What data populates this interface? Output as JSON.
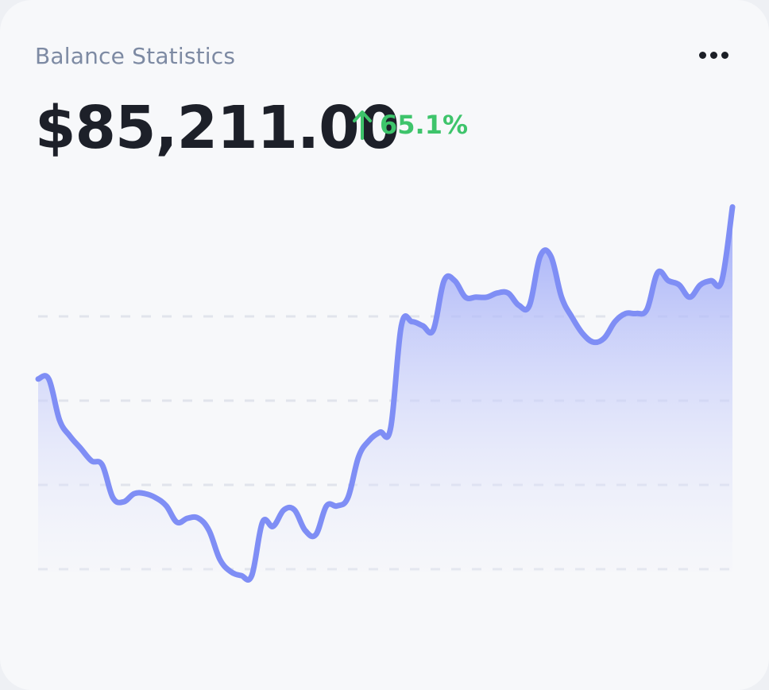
{
  "card": {
    "title": "Balance Statistics",
    "menu_icon": "more-horizontal-icon"
  },
  "balance": {
    "amount": "$85,211.00",
    "change_icon": "arrow-up-icon",
    "change": "65.1%",
    "change_color": "#3ec46b"
  },
  "colors": {
    "line": "#7f8ef5",
    "fill_top": "#9aa6f8",
    "fill_bottom": "#f3f4fb",
    "grid": "#e1e4ec"
  },
  "chart_data": {
    "type": "area",
    "title": "",
    "xlabel": "",
    "ylabel": "",
    "grid": true,
    "grid_style": "dashed-horizontal",
    "series": [
      {
        "values": [
          55,
          55,
          45,
          41,
          38,
          35,
          34,
          26,
          25,
          27,
          27,
          26,
          24,
          20,
          21,
          21,
          18,
          11,
          8,
          7,
          7,
          20,
          19,
          23,
          23,
          18,
          17,
          24,
          24,
          26,
          36,
          40,
          42,
          43,
          68,
          69,
          68,
          67,
          79,
          79,
          75,
          75,
          75,
          76,
          76,
          73,
          73,
          85,
          85,
          75,
          70,
          66,
          64,
          65,
          69,
          71,
          71,
          72,
          81,
          79,
          78,
          75,
          78,
          79,
          79,
          97
        ]
      }
    ]
  }
}
